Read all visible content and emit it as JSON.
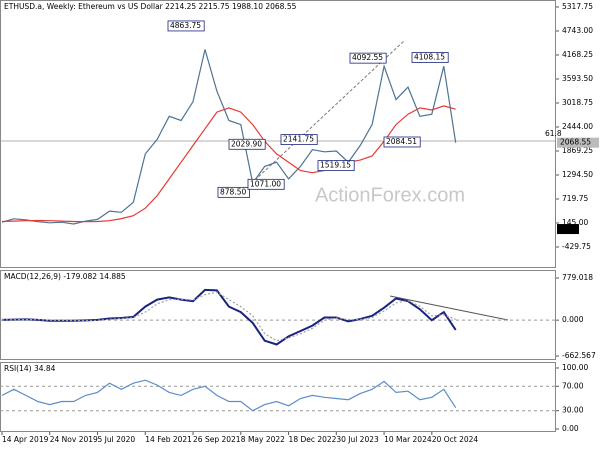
{
  "chart_data": [
    {
      "type": "line",
      "title": "ETHUSD.a, Weekly:  Ethereum vs US Dollar  2214.25 2215.75 1988.10 2068.55",
      "categories": [
        "14 Apr 2019",
        null,
        null,
        null,
        "24 Nov 2019",
        null,
        null,
        null,
        "5 Jul 2020",
        null,
        null,
        null,
        "14 Feb 2021",
        null,
        null,
        null,
        "26 Sep 2021",
        null,
        null,
        null,
        "8 May 2022",
        null,
        null,
        null,
        "18 Dec 2022",
        null,
        null,
        null,
        "30 Jul 2023",
        null,
        null,
        null,
        "10 Mar 2024",
        null,
        null,
        null,
        "20 Oct 2024",
        null,
        null
      ],
      "series": [
        {
          "color": "#4f7393",
          "values": [
            165,
            245,
            220,
            175,
            150,
            165,
            120,
            190,
            230,
            430,
            400,
            640,
            1800,
            2150,
            2700,
            2600,
            3050,
            4300,
            3300,
            2600,
            2500,
            1100,
            1500,
            1600,
            1200,
            1500,
            1900,
            1850,
            1870,
            1600,
            2000,
            2500,
            3900,
            3100,
            3400,
            2700,
            2750,
            3900,
            2068.55
          ]
        },
        {
          "color": "#e53935",
          "values": [
            180,
            190,
            200,
            205,
            200,
            190,
            180,
            175,
            180,
            200,
            250,
            320,
            500,
            800,
            1200,
            1600,
            2000,
            2400,
            2800,
            2900,
            2800,
            2500,
            2100,
            1800,
            1600,
            1400,
            1350,
            1400,
            1500,
            1600,
            1650,
            1750,
            2100,
            2500,
            2750,
            2900,
            2850,
            2950,
            2870
          ]
        }
      ],
      "ylim": [
        -933,
        5485
      ],
      "yticks": [
        5317.75,
        {
          "value": 4743,
          "label": "4743.00"
        },
        {
          "value": 4168.25,
          "label": "4168.25"
        },
        {
          "value": 3593.5,
          "label": "3593.50"
        },
        3018.75,
        {
          "value": 2444,
          "label": "2444.00"
        },
        1869.25,
        {
          "value": 1294.5,
          "label": "1294.50"
        },
        719.75,
        {
          "value": 145,
          "label": "145.00"
        },
        -429.75
      ],
      "annotations": [
        {
          "value": 4863.75,
          "label": "4863.75"
        },
        {
          "value": 2029.9,
          "label": "2029.90"
        },
        {
          "value": 2141.75,
          "label": "2141.75"
        },
        {
          "value": 878.5,
          "label": "878.50"
        },
        {
          "value": 1071,
          "label": "1071.00"
        },
        {
          "value": 1519.15,
          "label": "1519.15"
        },
        {
          "value": 4092.55,
          "label": "4092.55"
        },
        {
          "value": 4108.15,
          "label": "4108.15"
        },
        {
          "value": 2084.51,
          "label": "2084.51"
        }
      ],
      "level_label": "61.8",
      "price_label": {
        "value": 2068.55,
        "label": "2068.55"
      },
      "zero_label": {
        "value": 0,
        "label": "0.00"
      },
      "watermark": "ActionForex.com"
    },
    {
      "type": "line",
      "title": "MACD(12,26,9) -179.082 14.885",
      "series": [
        {
          "color": "#1a237e",
          "values": [
            5,
            10,
            15,
            5,
            -10,
            -10,
            -10,
            -5,
            5,
            30,
            40,
            60,
            250,
            380,
            420,
            380,
            350,
            560,
            550,
            250,
            150,
            -50,
            -380,
            -450,
            -300,
            -200,
            -100,
            50,
            50,
            -20,
            20,
            80,
            230,
            400,
            350,
            200,
            0,
            150,
            -179.082
          ]
        },
        {
          "color": "#a0a0a0",
          "values": [
            5,
            8,
            10,
            8,
            0,
            -5,
            -8,
            -7,
            -2,
            15,
            30,
            45,
            150,
            300,
            380,
            390,
            370,
            470,
            520,
            380,
            250,
            80,
            -250,
            -380,
            -330,
            -250,
            -150,
            0,
            40,
            10,
            10,
            50,
            170,
            320,
            360,
            260,
            80,
            100,
            14.885
          ]
        }
      ],
      "ylim": [
        -736,
        927
      ],
      "yticks": [
        779.018,
        {
          "value": 0,
          "label": "0.000"
        },
        -662.567
      ]
    },
    {
      "type": "line",
      "title": "RSI(14) 34.84",
      "series": [
        {
          "color": "#5b8ec9",
          "values": [
            55,
            65,
            55,
            45,
            40,
            45,
            45,
            55,
            60,
            75,
            65,
            75,
            80,
            72,
            60,
            55,
            65,
            70,
            55,
            45,
            45,
            30,
            40,
            45,
            38,
            50,
            55,
            52,
            50,
            48,
            58,
            65,
            78,
            60,
            62,
            48,
            52,
            65,
            34.84
          ]
        }
      ],
      "ylim": [
        -4.9,
        109.8
      ],
      "yticks": [
        {
          "value": 100,
          "label": "100.00"
        },
        {
          "value": 70,
          "label": "70.00"
        },
        {
          "value": 30,
          "label": "30.00"
        },
        {
          "value": 0,
          "label": "0.00"
        }
      ]
    }
  ]
}
